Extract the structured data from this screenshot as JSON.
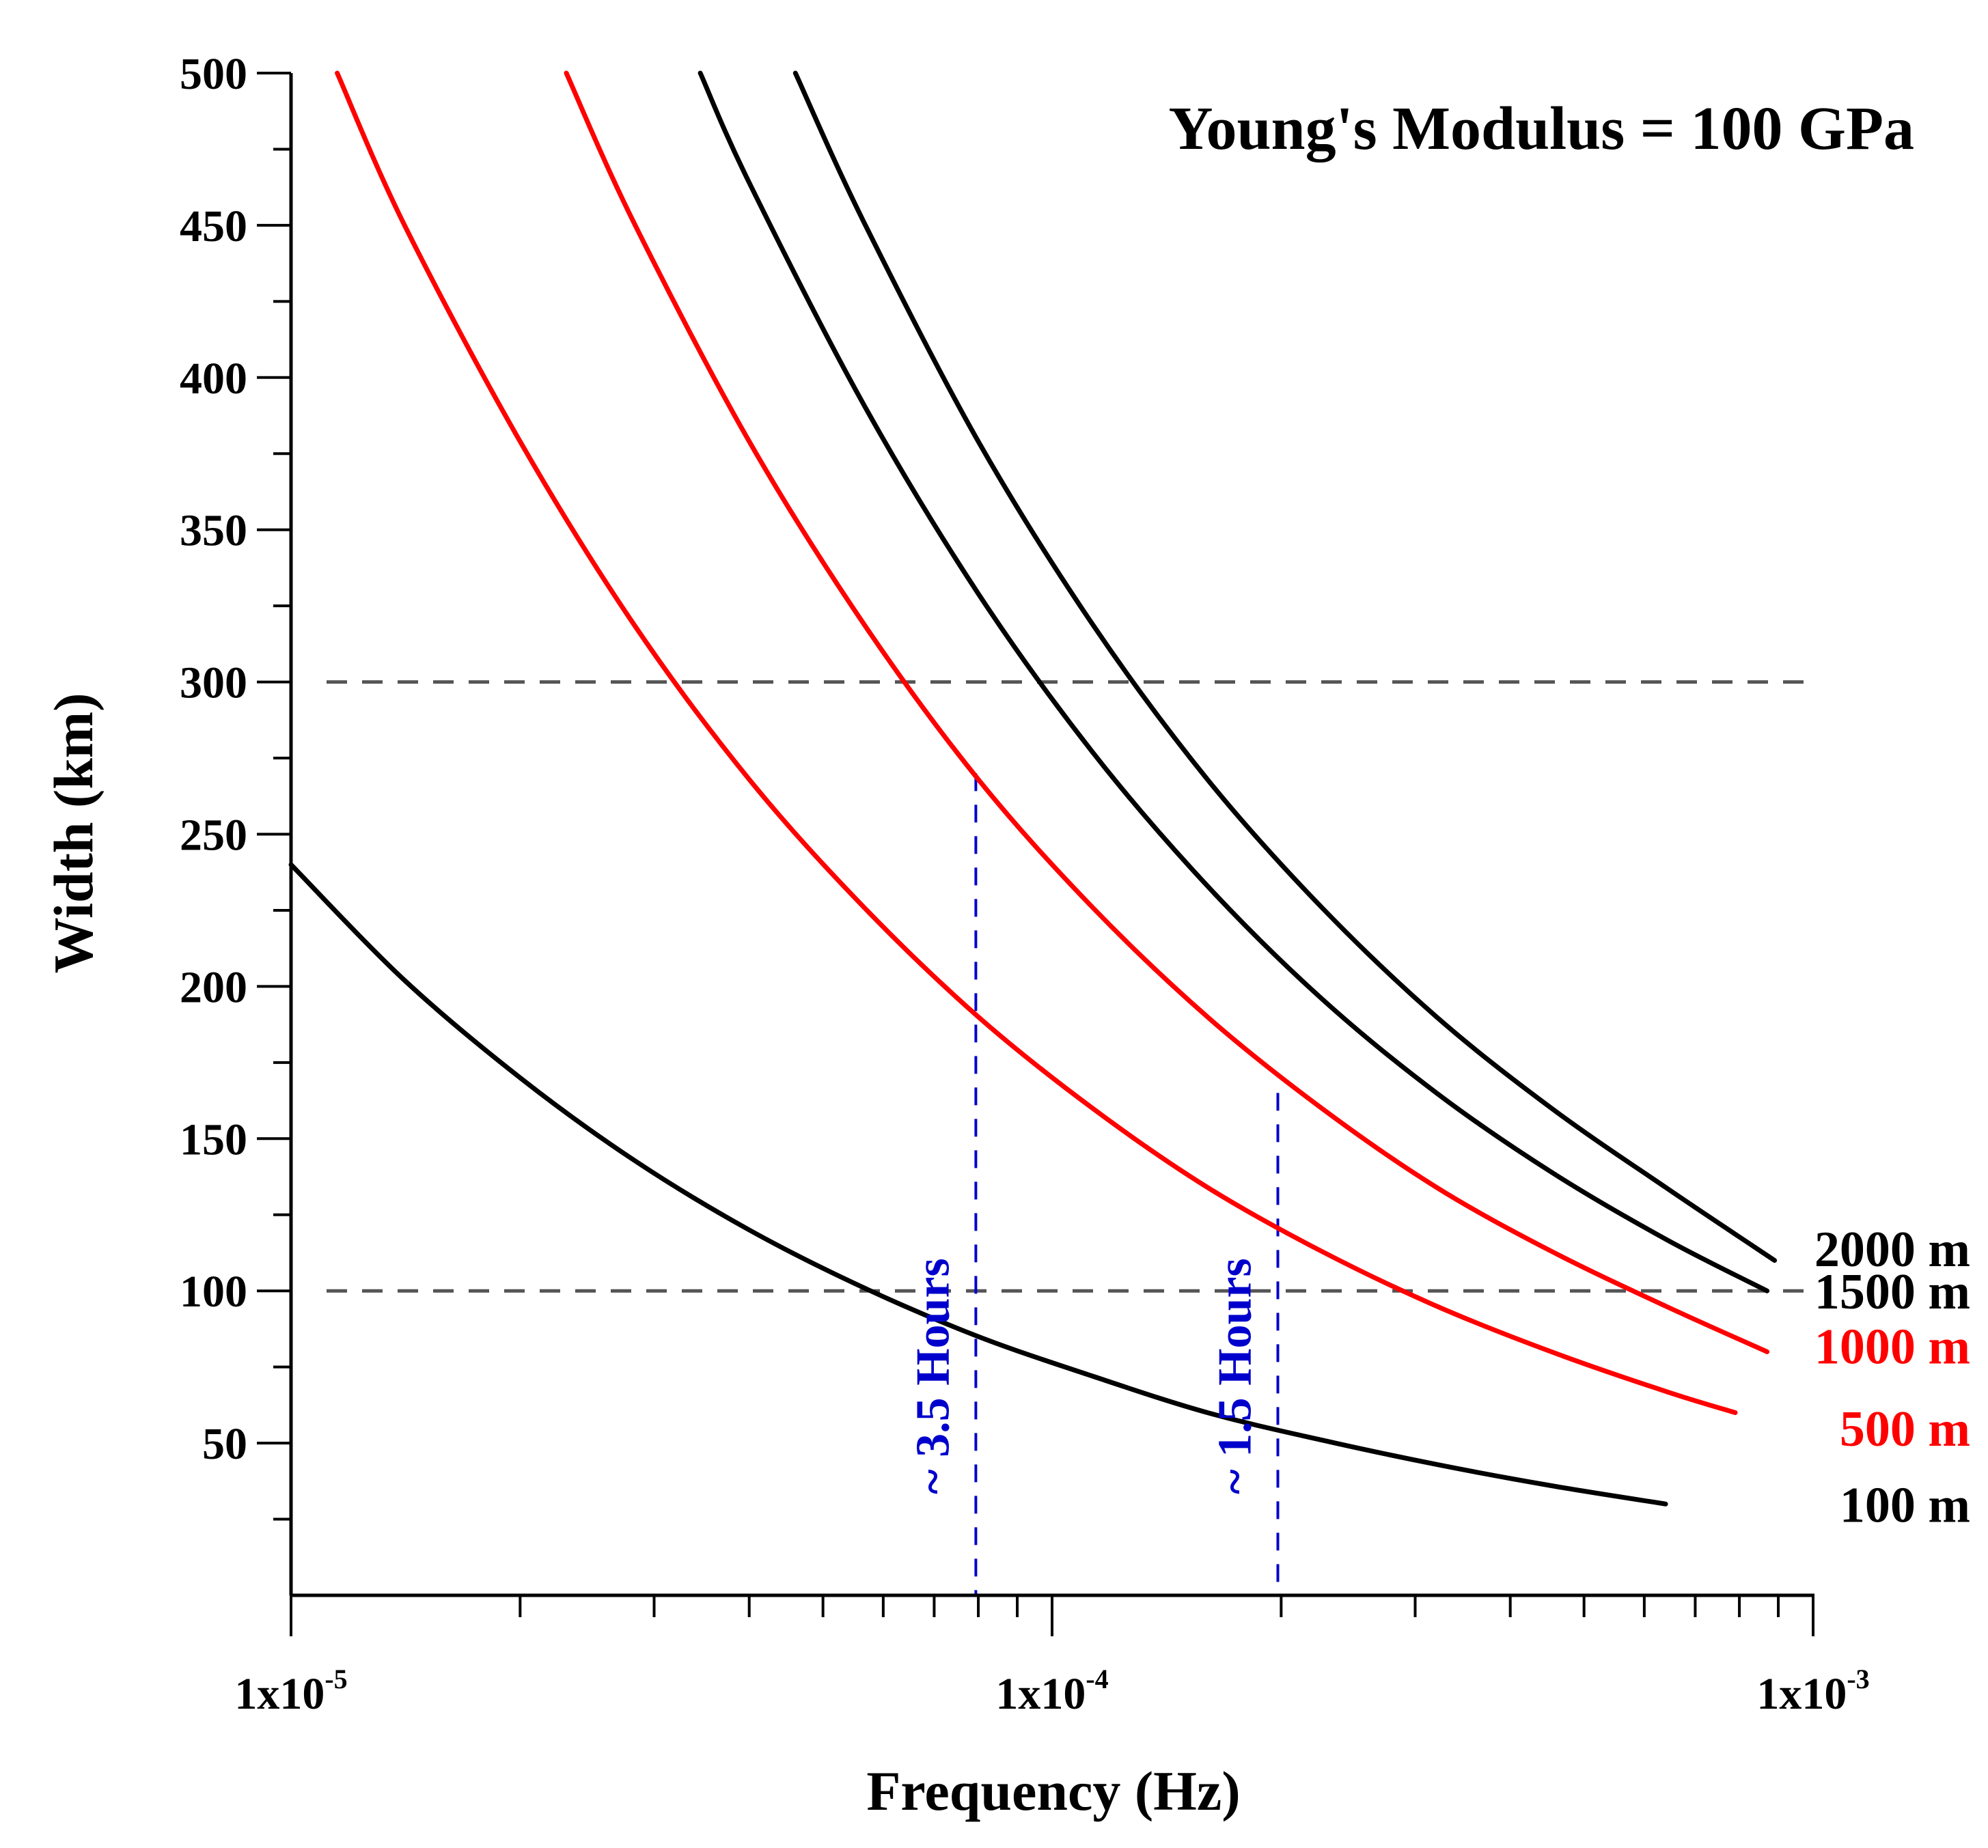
{
  "chart_data": {
    "type": "line",
    "title": "Young's Modulus = 100 GPa",
    "xlabel": "Frequency (Hz)",
    "ylabel": "Width (km)",
    "xscale": "log",
    "xlim": [
      1e-05,
      0.001
    ],
    "ylim": [
      0,
      500
    ],
    "grid": false,
    "x_ticks": [
      {
        "value": 1e-05,
        "base": "1x10",
        "exp": "-5"
      },
      {
        "value": 0.0001,
        "base": "1x10",
        "exp": "-4"
      },
      {
        "value": 0.001,
        "base": "1x10",
        "exp": "-3"
      }
    ],
    "y_ticks": [
      50,
      100,
      150,
      200,
      250,
      300,
      350,
      400,
      450,
      500
    ],
    "series": [
      {
        "name": "100 m",
        "color": "#000000",
        "x": [
          1e-05,
          1.41e-05,
          2e-05,
          2.82e-05,
          4e-05,
          5.66e-05,
          8e-05,
          0.000113,
          0.00016,
          0.000226,
          0.00032,
          0.000453,
          0.00064
        ],
        "y": [
          240,
          202,
          170,
          143,
          120,
          101,
          85,
          72,
          60,
          51,
          43,
          36,
          30
        ]
      },
      {
        "name": "500 m",
        "color": "#ff0000",
        "x": [
          1.15e-05,
          1.41e-05,
          2e-05,
          2.82e-05,
          4e-05,
          5.66e-05,
          8e-05,
          0.000113,
          0.00016,
          0.000226,
          0.00032,
          0.000453,
          0.00064,
          0.00079
        ],
        "y": [
          500,
          450,
          379,
          319,
          268,
          226,
          190,
          160,
          134,
          113,
          95,
          80,
          67,
          60
        ]
      },
      {
        "name": "1000 m",
        "color": "#ff0000",
        "x": [
          2.3e-05,
          2.82e-05,
          4e-05,
          5.66e-05,
          8e-05,
          0.000113,
          0.00016,
          0.000226,
          0.00032,
          0.000453,
          0.00064,
          0.00087
        ],
        "y": [
          500,
          451,
          379,
          319,
          268,
          226,
          190,
          160,
          134,
          113,
          95,
          80
        ]
      },
      {
        "name": "1500 m",
        "color": "#000000",
        "x": [
          3.45e-05,
          4e-05,
          5.66e-05,
          8e-05,
          0.000113,
          0.00016,
          0.000226,
          0.00032,
          0.000453,
          0.00064,
          0.00087
        ],
        "y": [
          500,
          464,
          391,
          329,
          277,
          233,
          196,
          165,
          139,
          117,
          100
        ]
      },
      {
        "name": "2000 m",
        "color": "#000000",
        "x": [
          4.6e-05,
          5.66e-05,
          8e-05,
          0.000113,
          0.00016,
          0.000226,
          0.00032,
          0.000453,
          0.00064,
          0.00089
        ],
        "y": [
          500,
          451,
          379,
          319,
          268,
          226,
          190,
          160,
          134,
          110
        ]
      }
    ],
    "reference_lines": [
      {
        "orientation": "horizontal",
        "y": 300,
        "color": "#555555"
      },
      {
        "orientation": "horizontal",
        "y": 100,
        "color": "#555555"
      },
      {
        "orientation": "vertical",
        "x": 7.94e-05,
        "y_top": 270,
        "label": "~ 3.5 Hours",
        "color": "#0000cc"
      },
      {
        "orientation": "vertical",
        "x": 0.000198,
        "y_top": 165,
        "label": "~ 1.5 Hours",
        "color": "#0000cc"
      }
    ],
    "legend": "right-end-labels"
  }
}
